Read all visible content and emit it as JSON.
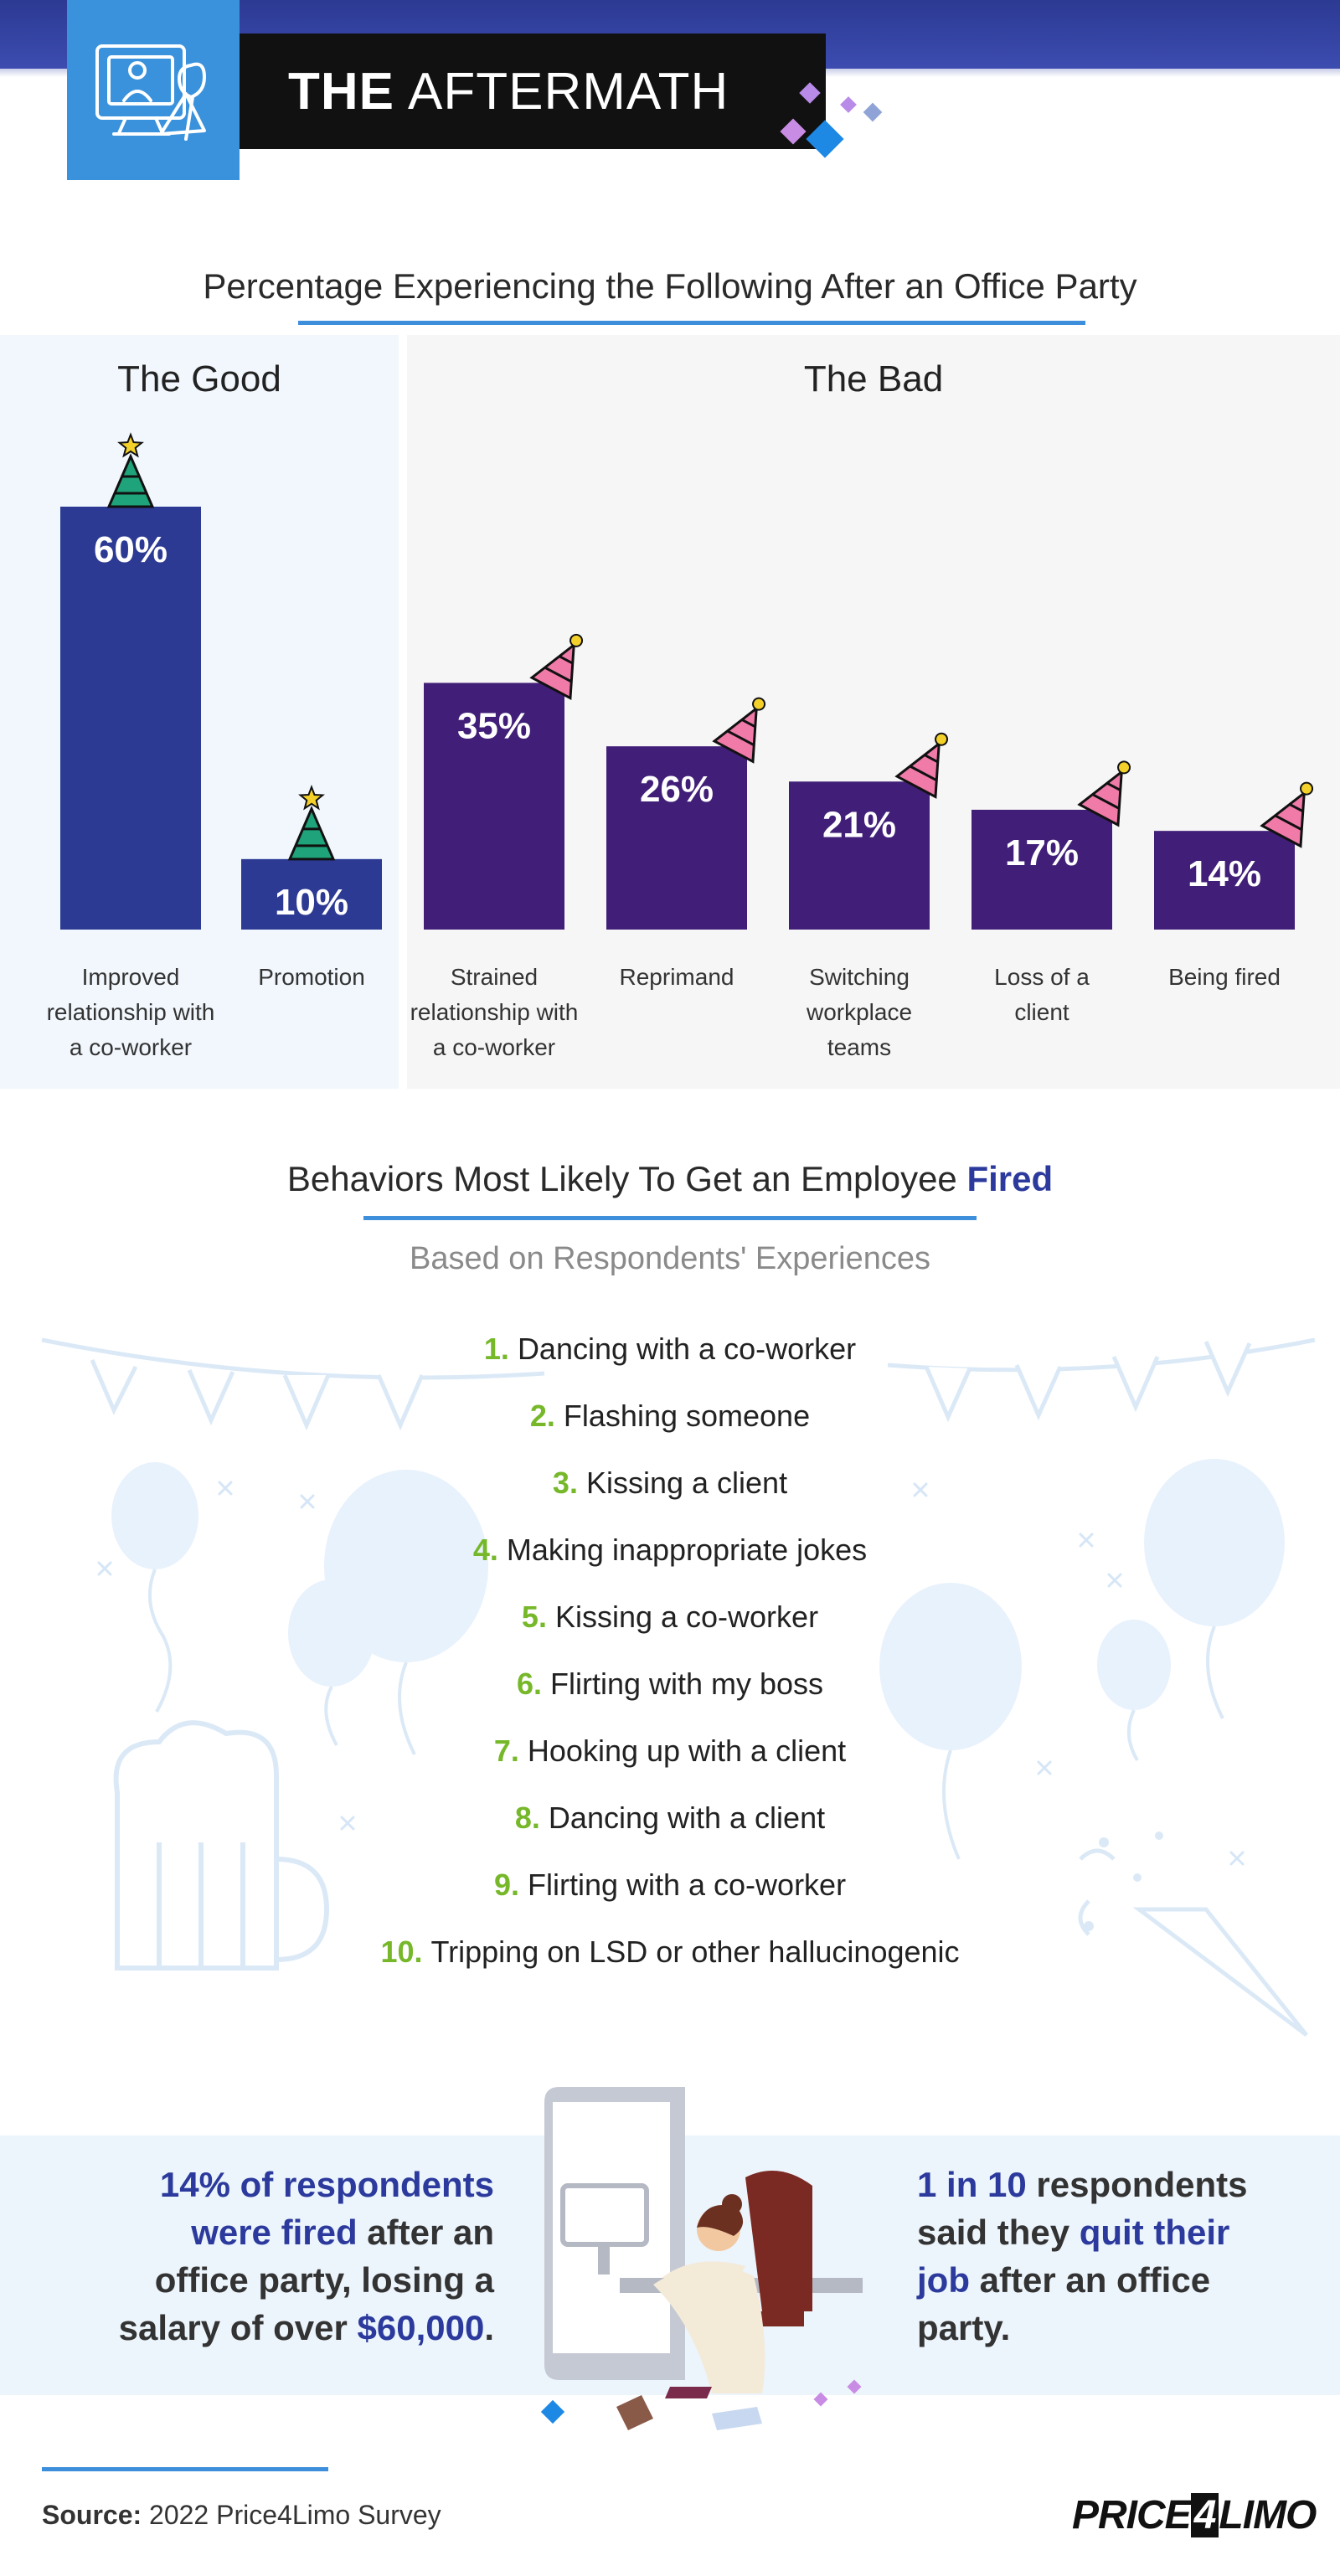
{
  "header": {
    "title_bold": "THE",
    "title_rest": "AFTERMATH",
    "icon": "office-party-monitor-icon"
  },
  "chart_section": {
    "title": "Percentage Experiencing the Following After an Office Party",
    "good_label": "The Good",
    "bad_label": "The Bad"
  },
  "chart_data": {
    "type": "bar",
    "title": "Percentage Experiencing the Following After an Office Party",
    "categories": [
      "Improved relationship with a co-worker",
      "Promotion",
      "Strained relationship with a co-worker",
      "Reprimand",
      "Switching workplace teams",
      "Loss of a client",
      "Being fired"
    ],
    "category_lines": [
      [
        "Improved",
        "relationship with",
        "a co-worker"
      ],
      [
        "Promotion"
      ],
      [
        "Strained",
        "relationship with",
        "a co-worker"
      ],
      [
        "Reprimand"
      ],
      [
        "Switching",
        "workplace",
        "teams"
      ],
      [
        "Loss of a",
        "client"
      ],
      [
        "Being fired"
      ]
    ],
    "values": [
      60,
      10,
      35,
      26,
      21,
      17,
      14
    ],
    "value_labels": [
      "60%",
      "10%",
      "35%",
      "26%",
      "21%",
      "17%",
      "14%"
    ],
    "groups": [
      "The Good",
      "The Good",
      "The Bad",
      "The Bad",
      "The Bad",
      "The Bad",
      "The Bad"
    ],
    "colors": {
      "good": "#2c3a93",
      "bad": "#411f78",
      "hat_good": "#1fa37a",
      "hat_bad": "#f07aa8",
      "star": "#f4d12a"
    },
    "xlabel": "",
    "ylabel": "",
    "ylim": [
      0,
      60
    ],
    "grid": false,
    "legend": "none"
  },
  "behaviors": {
    "title_prefix": "Behaviors Most Likely To Get an Employee",
    "title_highlight": "Fired",
    "subtitle": "Based on Respondents' Experiences",
    "items": [
      {
        "num": "1.",
        "text": "Dancing with a co-worker"
      },
      {
        "num": "2.",
        "text": "Flashing someone"
      },
      {
        "num": "3.",
        "text": "Kissing a client"
      },
      {
        "num": "4.",
        "text": "Making inappropriate jokes"
      },
      {
        "num": "5.",
        "text": "Kissing a co-worker"
      },
      {
        "num": "6.",
        "text": "Flirting with my boss"
      },
      {
        "num": "7.",
        "text": "Hooking up with a client"
      },
      {
        "num": "8.",
        "text": "Dancing with a client"
      },
      {
        "num": "9.",
        "text": "Flirting with a co-worker"
      },
      {
        "num": "10.",
        "text": "Tripping on LSD or other hallucinogenic"
      }
    ]
  },
  "stats": {
    "left": {
      "hl1": "14% of respondents",
      "hl2": "were fired",
      "t1": "after an",
      "t2": "office party, losing a",
      "t3": "salary of over",
      "hl3": "$60,000",
      "t4": "."
    },
    "right": {
      "hl1": "1 in 10",
      "t1": "respondents",
      "t2": "said they",
      "hl2": "quit their",
      "hl3": "job",
      "t3": "after an office",
      "t4": "party."
    }
  },
  "footer": {
    "source_label": "Source:",
    "source_text": "2022 Price4Limo Survey",
    "logo_a": "PRICE",
    "logo_b": "4",
    "logo_c": "LIMO"
  }
}
